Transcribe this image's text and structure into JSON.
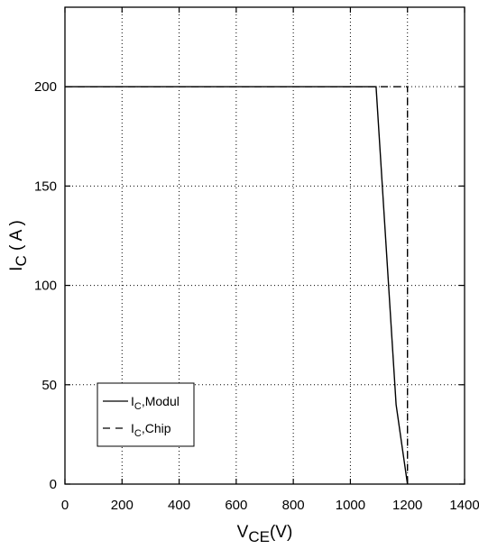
{
  "chart_data": {
    "type": "line",
    "xlabel": {
      "main": "V",
      "sub": "CE",
      "unit": "(V)"
    },
    "ylabel": {
      "main": "I",
      "sub": "C",
      "unit": " ( A )"
    },
    "xlim": [
      0,
      1400
    ],
    "ylim": [
      0,
      240
    ],
    "xticks": [
      0,
      200,
      400,
      600,
      800,
      1000,
      1200,
      1400
    ],
    "yticks": [
      0,
      50,
      100,
      150,
      200
    ],
    "grid": true,
    "legend_position": "bottom-left",
    "series": [
      {
        "name": {
          "main": "I",
          "sub": "C",
          "rest": ",Modul"
        },
        "style": "solid",
        "color": "#000000",
        "x": [
          0,
          1090,
          1160,
          1200
        ],
        "y": [
          200,
          200,
          40,
          0
        ]
      },
      {
        "name": {
          "main": "I",
          "sub": "C",
          "rest": ",Chip"
        },
        "style": "dashed",
        "color": "#000000",
        "x": [
          0,
          1200,
          1200
        ],
        "y": [
          200,
          200,
          0
        ]
      }
    ]
  }
}
